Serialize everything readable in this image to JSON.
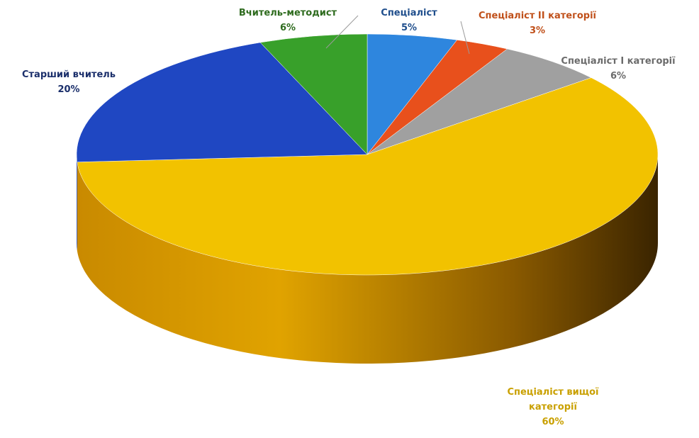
{
  "chart_data": {
    "type": "pie",
    "style": "3d",
    "series": [
      {
        "slices": [
          {
            "label": "Спеціаліст",
            "value": 5,
            "value_label": "5%",
            "color": "#2e86de",
            "label_color": "#1f4e8c"
          },
          {
            "label": "Спеціаліст ІІ категорії",
            "value": 3,
            "value_label": "3%",
            "color": "#e8501c",
            "label_color": "#c0501a"
          },
          {
            "label": "Спеціаліст І категорії",
            "value": 6,
            "value_label": "6%",
            "color": "#a0a0a0",
            "label_color": "#6b6b6b"
          },
          {
            "label": "Спеціаліст вищої категорії",
            "value": 60,
            "value_label": "60%",
            "color": "#f2c200",
            "label_color": "#c9a000"
          },
          {
            "label": "Старший вчитель",
            "value": 20,
            "value_label": "20%",
            "color": "#1f47c2",
            "label_color": "#1b2f6b"
          },
          {
            "label": "Вчитель-методист",
            "value": 6,
            "value_label": "6%",
            "color": "#38a02a",
            "label_color": "#2e6b1e"
          }
        ]
      }
    ],
    "legend": "none",
    "data_labels": "outside"
  }
}
